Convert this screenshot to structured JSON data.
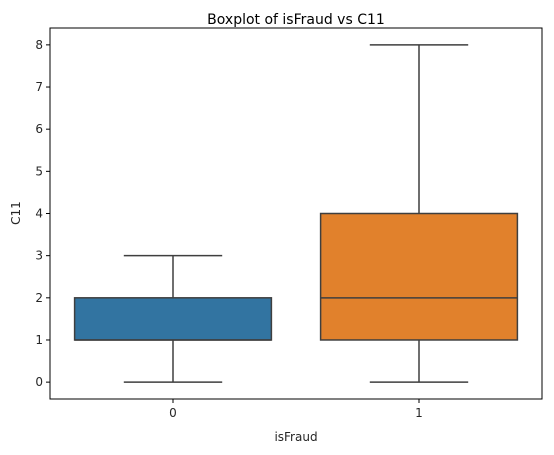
{
  "chart_data": {
    "type": "boxplot",
    "title": "Boxplot of isFraud vs C11",
    "xlabel": "isFraud",
    "ylabel": "C11",
    "ylim": [
      -0.4,
      8.4
    ],
    "yticks": [
      0,
      1,
      2,
      3,
      4,
      5,
      6,
      7,
      8
    ],
    "grid": false,
    "categories": [
      "0",
      "1"
    ],
    "boxes": [
      {
        "category": "0",
        "whisker_low": 0,
        "q1": 1,
        "median": 1,
        "q3": 2,
        "whisker_high": 3,
        "color": "#3274a1"
      },
      {
        "category": "1",
        "whisker_low": 0,
        "q1": 1,
        "median": 2,
        "q3": 4,
        "whisker_high": 8,
        "color": "#e1812c"
      }
    ],
    "line_color": "#3f3f3f"
  }
}
